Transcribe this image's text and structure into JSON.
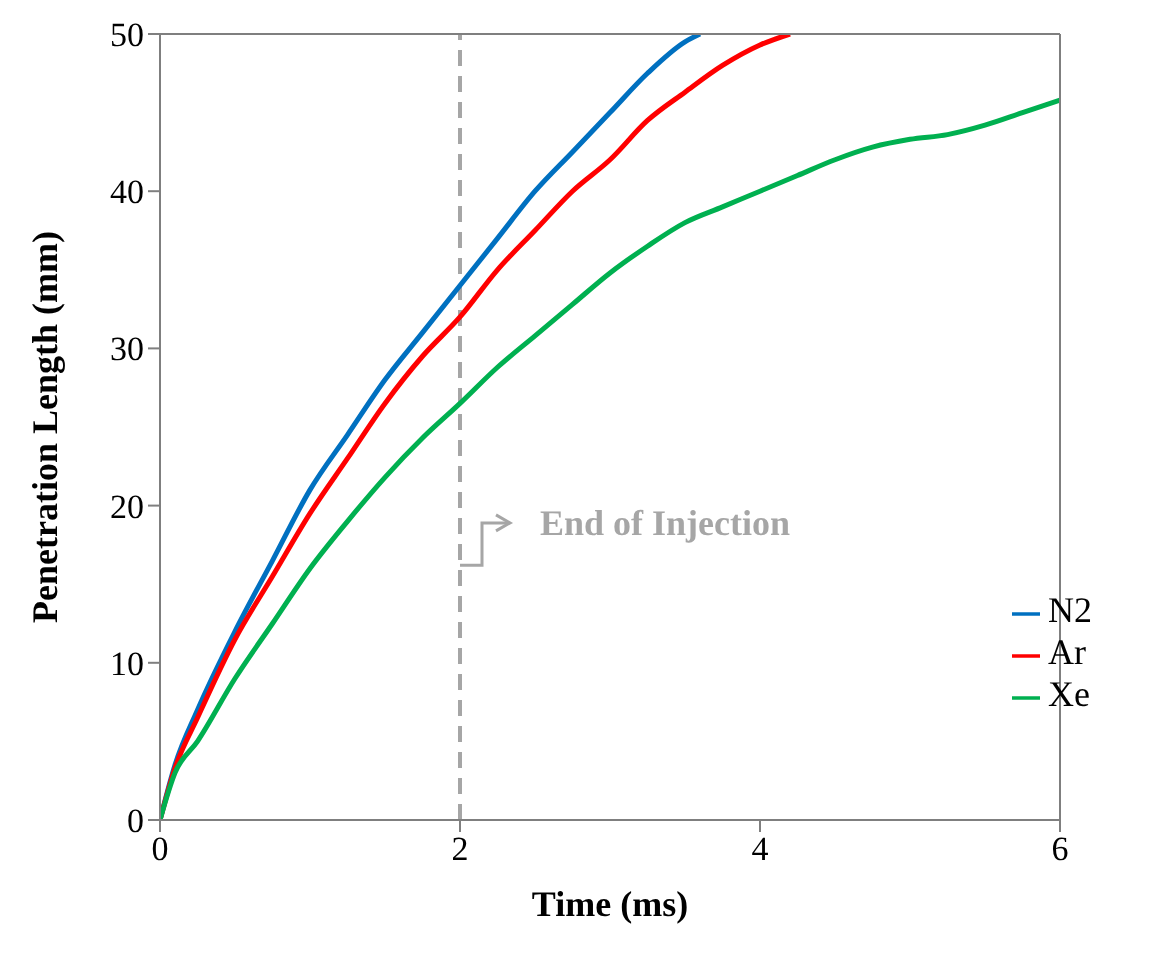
{
  "chart_data": {
    "type": "line",
    "xlabel": "Time (ms)",
    "ylabel": "Penetration Length (mm)",
    "xlim": [
      0,
      6
    ],
    "xticks": [
      0,
      2,
      4,
      6
    ],
    "ylim": [
      0,
      50
    ],
    "yticks": [
      0,
      10,
      20,
      30,
      40,
      50
    ],
    "legend": "bottom right",
    "marker": "none",
    "line_style": "solid",
    "ref_lines": [
      {
        "axis": "x",
        "value": 2,
        "label": "End of Injection",
        "color": "#a6a6a6",
        "line_style": "dashed"
      }
    ],
    "series": [
      {
        "name": "N2",
        "color": "#0070c0",
        "x": [
          0,
          0.1,
          0.25,
          0.5,
          0.75,
          1,
          1.25,
          1.5,
          1.75,
          2,
          2.25,
          2.5,
          2.75,
          3,
          3.25,
          3.5,
          3.6
        ],
        "values": [
          0,
          3.5,
          7,
          12,
          16.5,
          21,
          24.5,
          28,
          31,
          34,
          37,
          40,
          42.5,
          45,
          47.5,
          49.5,
          50
        ]
      },
      {
        "name": "Ar",
        "color": "#ff0000",
        "x": [
          0,
          0.1,
          0.25,
          0.5,
          0.75,
          1,
          1.25,
          1.5,
          1.75,
          2,
          2.25,
          2.5,
          2.75,
          3,
          3.25,
          3.5,
          3.75,
          4,
          4.2
        ],
        "values": [
          0,
          3.3,
          6.5,
          11.5,
          15.5,
          19.5,
          23,
          26.5,
          29.5,
          32,
          35,
          37.5,
          40,
          42,
          44.5,
          46.3,
          48,
          49.3,
          50
        ]
      },
      {
        "name": "Xe",
        "color": "#00b050",
        "x": [
          0,
          0.1,
          0.25,
          0.5,
          0.75,
          1,
          1.25,
          1.5,
          1.75,
          2,
          2.25,
          2.5,
          2.75,
          3,
          3.25,
          3.5,
          3.75,
          4,
          4.25,
          4.5,
          4.75,
          5,
          5.25,
          5.5,
          5.75,
          6
        ],
        "values": [
          0,
          3,
          5,
          9,
          12.5,
          16,
          19,
          21.8,
          24.3,
          26.5,
          28.8,
          30.8,
          32.8,
          34.8,
          36.5,
          38,
          39,
          40,
          41,
          42,
          42.8,
          43.3,
          43.6,
          44.2,
          45,
          45.8
        ]
      }
    ]
  }
}
